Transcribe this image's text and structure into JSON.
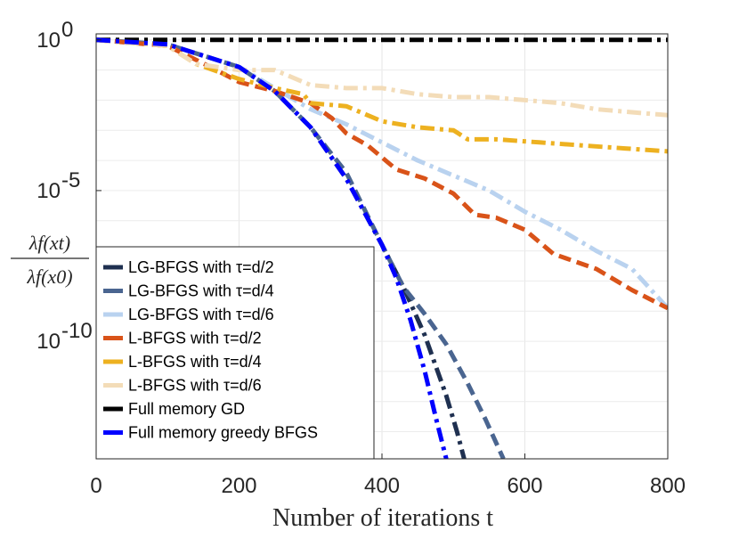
{
  "chart_data": {
    "type": "line",
    "title": "",
    "xlabel": "Number of iterations t",
    "ylabel": {
      "numerator": "λf(xt)",
      "denominator": "λf(x0)"
    },
    "xlim": [
      0,
      800
    ],
    "ylim_log10": [
      -13.9,
      0.2
    ],
    "yscale": "log",
    "x_ticks": [
      0,
      200,
      400,
      600,
      800
    ],
    "x_tick_labels": [
      "0",
      "200",
      "400",
      "600",
      "800"
    ],
    "y_ticks": [
      {
        "exp": 0,
        "base": "10",
        "sup": "0"
      },
      {
        "exp": -5,
        "base": "10",
        "sup": "-5"
      },
      {
        "exp": -10,
        "base": "10",
        "sup": "-10"
      }
    ],
    "grid": true,
    "legend_position": "bottom-left",
    "series": [
      {
        "name": "LG-BFGS with τ=d/2",
        "color": "#1f3050",
        "style": "dash-dot",
        "x": [
          0,
          100,
          200,
          250,
          300,
          350,
          400,
          430,
          460,
          490,
          505,
          515
        ],
        "log10_y": [
          0,
          -0.15,
          -0.9,
          -1.7,
          -2.9,
          -4.6,
          -6.8,
          -8.2,
          -9.8,
          -11.8,
          -13.0,
          -13.9
        ]
      },
      {
        "name": "LG-BFGS with τ=d/4",
        "color": "#4a6590",
        "style": "dashed",
        "x": [
          0,
          100,
          200,
          250,
          300,
          350,
          400,
          430,
          460,
          490,
          520,
          545,
          570
        ],
        "log10_y": [
          0,
          -0.15,
          -0.9,
          -1.7,
          -2.9,
          -4.4,
          -6.8,
          -8.2,
          -9.1,
          -10.1,
          -11.4,
          -12.6,
          -13.9
        ]
      },
      {
        "name": "LG-BFGS with τ=d/6",
        "color": "#b9d2ef",
        "style": "dash-dot",
        "x": [
          0,
          100,
          200,
          250,
          300,
          350,
          400,
          450,
          500,
          550,
          600,
          650,
          700,
          750,
          800
        ],
        "log10_y": [
          0,
          -0.15,
          -0.9,
          -1.6,
          -2.3,
          -2.8,
          -3.4,
          -4.0,
          -4.5,
          -5.0,
          -5.7,
          -6.3,
          -7.0,
          -7.6,
          -8.9
        ]
      },
      {
        "name": "L-BFGS with τ=d/2",
        "color": "#d95319",
        "style": "dashed",
        "x": [
          0,
          100,
          160,
          200,
          250,
          300,
          330,
          350,
          380,
          420,
          460,
          500,
          530,
          560,
          600,
          640,
          700,
          750,
          800
        ],
        "log10_y": [
          0,
          -0.2,
          -0.9,
          -1.4,
          -1.7,
          -2.1,
          -2.6,
          -3.1,
          -3.5,
          -4.3,
          -4.6,
          -5.1,
          -5.8,
          -5.9,
          -6.3,
          -7.1,
          -7.6,
          -8.3,
          -8.9
        ]
      },
      {
        "name": "L-BFGS with τ=d/4",
        "color": "#edb120",
        "style": "dash-dot",
        "x": [
          0,
          100,
          140,
          200,
          250,
          290,
          300,
          350,
          400,
          450,
          500,
          520,
          560,
          620,
          680,
          740,
          800
        ],
        "log10_y": [
          0,
          -0.2,
          -0.8,
          -1.3,
          -1.6,
          -1.8,
          -2.1,
          -2.2,
          -2.7,
          -2.9,
          -3.0,
          -3.3,
          -3.3,
          -3.4,
          -3.5,
          -3.6,
          -3.7
        ]
      },
      {
        "name": "L-BFGS with τ=d/6",
        "color": "#f3dcb8",
        "style": "dash-dot",
        "x": [
          0,
          100,
          140,
          200,
          250,
          300,
          350,
          400,
          450,
          500,
          550,
          600,
          650,
          700,
          750,
          800
        ],
        "log10_y": [
          0,
          -0.2,
          -0.8,
          -1.0,
          -1.0,
          -1.5,
          -1.6,
          -1.6,
          -1.8,
          -1.9,
          -1.9,
          -2.0,
          -2.1,
          -2.3,
          -2.4,
          -2.5
        ]
      },
      {
        "name": "Full memory GD",
        "color": "#000000",
        "style": "dash-dot",
        "x": [
          0,
          800
        ],
        "log10_y": [
          0,
          0
        ]
      },
      {
        "name": "Full memory greedy BFGS",
        "color": "#0000ff",
        "style": "dash-dot",
        "x": [
          0,
          100,
          200,
          250,
          300,
          350,
          400,
          420,
          440,
          460,
          475,
          490
        ],
        "log10_y": [
          0,
          -0.15,
          -0.9,
          -1.7,
          -2.9,
          -4.6,
          -6.8,
          -7.9,
          -9.3,
          -11.0,
          -12.5,
          -13.9
        ]
      }
    ]
  }
}
